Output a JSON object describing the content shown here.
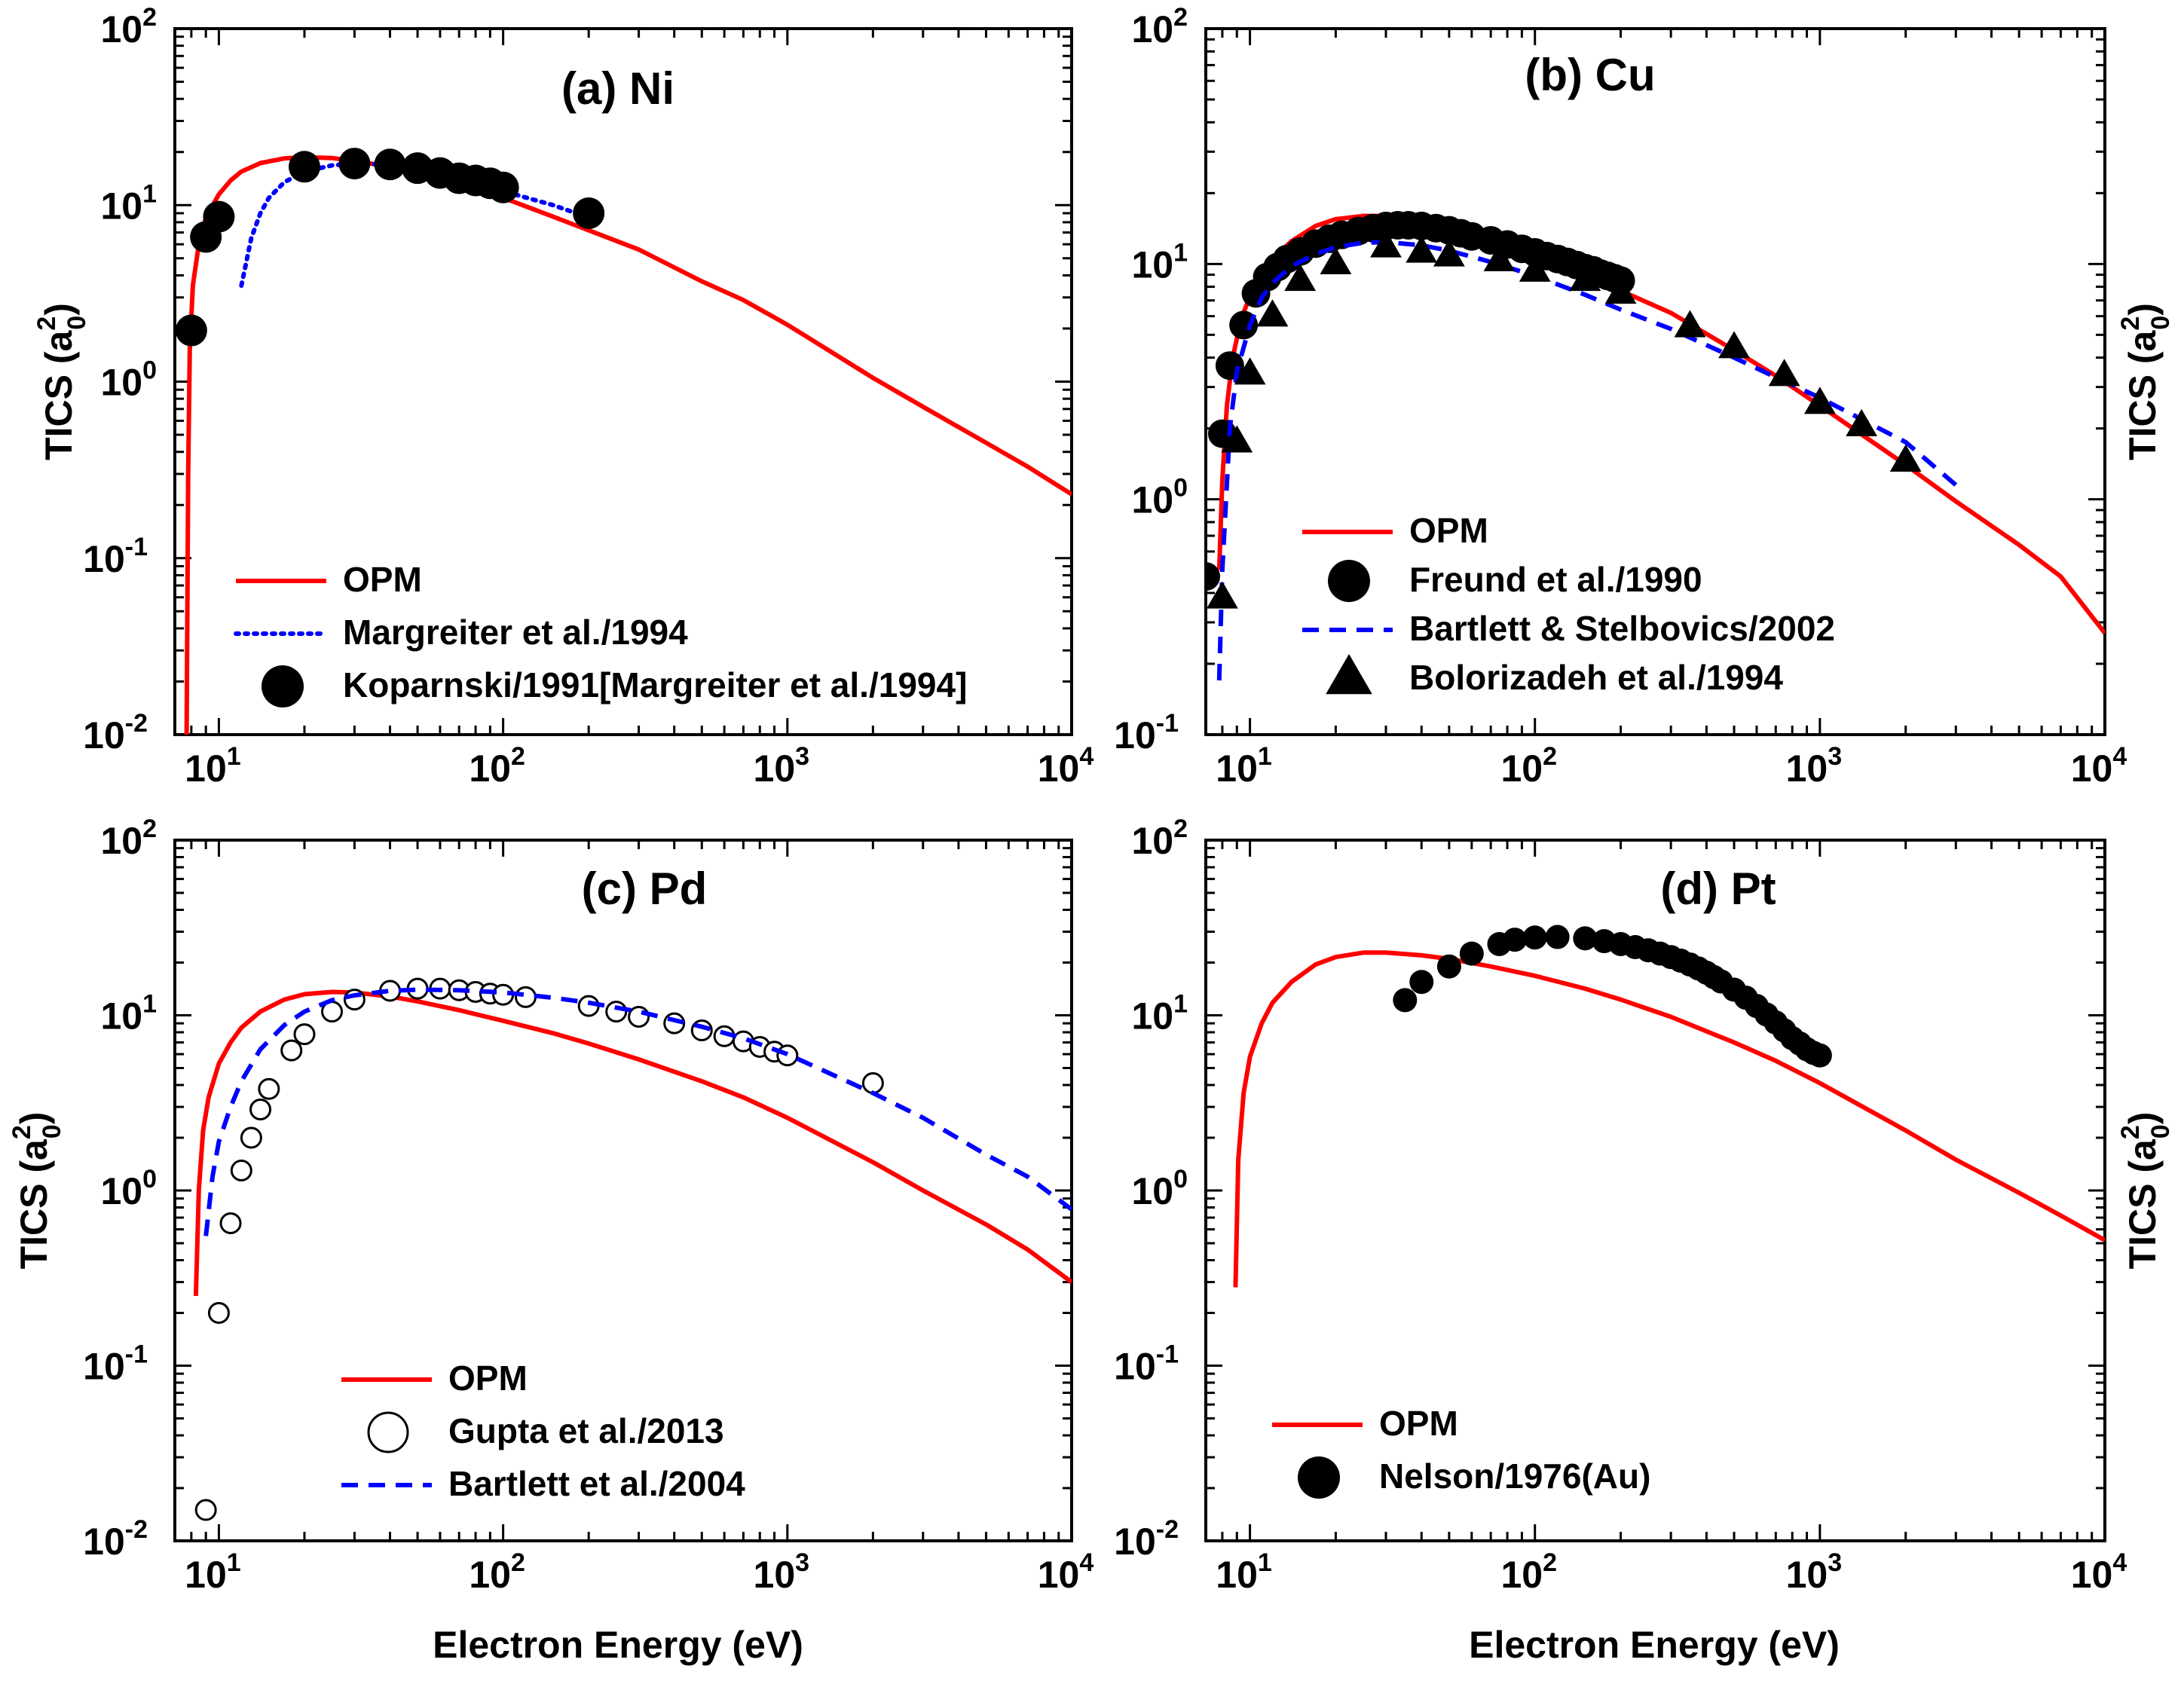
{
  "figure": {
    "xlabel": "Electron Energy (eV)",
    "ylabel": "TICS (a",
    "ylabel_sup": "2",
    "ylabel_sub": "0",
    "ylabel_close": ")"
  },
  "chart_data": [
    {
      "id": "a",
      "type": "line",
      "title": "(a) Ni",
      "xscale": "log",
      "yscale": "log",
      "xlim": [
        7,
        10000
      ],
      "ylim": [
        0.01,
        100
      ],
      "x_ticks": [
        10,
        100,
        1000,
        10000
      ],
      "y_ticks": [
        0.01,
        0.1,
        1,
        10,
        100
      ],
      "tick_base": "10",
      "x_tick_exps": [
        "1",
        "2",
        "3",
        "4"
      ],
      "y_tick_exps": [
        "-2",
        "-1",
        "0",
        "1",
        "2"
      ],
      "show_ylabel": "left",
      "show_xlabel": false,
      "legend_position": "bottom-left",
      "series": [
        {
          "name": "OPM",
          "kind": "line",
          "color": "#ff0000",
          "dash": "solid",
          "x": [
            7.7,
            7.8,
            7.9,
            8.1,
            8.5,
            9,
            10,
            11,
            12,
            14,
            17,
            20,
            25,
            30,
            40,
            50,
            70,
            100,
            150,
            200,
            300,
            500,
            700,
            1000,
            2000,
            3000,
            5000,
            7000,
            10000
          ],
          "y": [
            0.01,
            0.3,
            1.5,
            3.5,
            6.0,
            8.5,
            11.5,
            13.8,
            15.5,
            17.3,
            18.4,
            18.7,
            18.5,
            17.8,
            16.5,
            15.5,
            13.3,
            11.0,
            8.6,
            7.2,
            5.6,
            3.7,
            2.9,
            2.1,
            1.05,
            0.72,
            0.45,
            0.33,
            0.23
          ]
        },
        {
          "name": "Margreiter et al./1994",
          "kind": "line",
          "color": "#0000ff",
          "dash": "dotted",
          "x": [
            12,
            13,
            14,
            15,
            17,
            20,
            25,
            30,
            40,
            50,
            70,
            100,
            150,
            200
          ],
          "y": [
            3.5,
            6.5,
            9.0,
            11.0,
            13.5,
            15.5,
            16.8,
            17.2,
            17.0,
            16.0,
            14.0,
            12.0,
            10.0,
            8.5
          ]
        },
        {
          "name": "Koparnski/1991[Margreiter et al./1994]",
          "kind": "scatter",
          "marker": "circle-filled",
          "color": "#000000",
          "x": [
            8,
            9,
            10,
            20,
            30,
            40,
            50,
            60,
            70,
            80,
            90,
            100,
            200
          ],
          "y": [
            1.95,
            6.6,
            8.6,
            16.5,
            17.2,
            17.0,
            16.2,
            15.2,
            14.2,
            13.8,
            13.3,
            12.6,
            9.0
          ]
        }
      ]
    },
    {
      "id": "b",
      "type": "line",
      "title": "(b) Cu",
      "xscale": "log",
      "yscale": "log",
      "xlim": [
        7,
        10000
      ],
      "ylim": [
        0.1,
        100
      ],
      "x_ticks": [
        10,
        100,
        1000,
        10000
      ],
      "y_ticks": [
        0.1,
        1,
        10,
        100
      ],
      "tick_base": "10",
      "x_tick_exps": [
        "1",
        "2",
        "3",
        "4"
      ],
      "y_tick_exps": [
        "-1",
        "0",
        "1",
        "2"
      ],
      "show_ylabel": "right",
      "show_xlabel": false,
      "legend_position": "bottom-left",
      "series": [
        {
          "name": "OPM",
          "kind": "line",
          "color": "#ff0000",
          "dash": "solid",
          "x": [
            7.8,
            8,
            8.3,
            8.7,
            9.3,
            10,
            11,
            12,
            14,
            17,
            20,
            25,
            30,
            40,
            50,
            70,
            100,
            150,
            200,
            300,
            500,
            700,
            1000,
            2000,
            3000,
            5000,
            7000,
            10000
          ],
          "y": [
            0.5,
            1.2,
            2.5,
            4.0,
            5.8,
            7.3,
            9.0,
            10.5,
            12.5,
            14.5,
            15.5,
            16.0,
            16.0,
            15.2,
            14.3,
            12.7,
            11.0,
            9.0,
            7.7,
            6.2,
            4.3,
            3.35,
            2.5,
            1.4,
            0.98,
            0.64,
            0.47,
            0.27
          ]
        },
        {
          "name": "Freund et al./1990",
          "kind": "scatter",
          "marker": "circle-filled",
          "color": "#000000",
          "x": [
            7,
            8,
            8.5,
            9.5,
            10.5,
            11.5,
            12.5,
            13.5,
            15,
            17,
            19,
            21,
            24,
            27,
            30,
            33,
            36,
            40,
            45,
            50,
            55,
            60,
            70,
            80,
            90,
            100,
            110,
            120,
            130,
            140,
            150,
            160,
            170,
            180,
            190,
            200
          ],
          "y": [
            0.47,
            1.9,
            3.7,
            5.5,
            7.5,
            8.8,
            9.7,
            10.5,
            11.3,
            12.2,
            12.8,
            13.3,
            13.8,
            14.2,
            14.5,
            14.6,
            14.6,
            14.5,
            14.2,
            13.9,
            13.5,
            13.1,
            12.6,
            12.1,
            11.6,
            11.2,
            10.8,
            10.5,
            10.2,
            9.9,
            9.6,
            9.4,
            9.1,
            8.9,
            8.7,
            8.5
          ]
        },
        {
          "name": "Bartlett & Stelbovics/2002",
          "kind": "line",
          "color": "#0000ff",
          "dash": "dashed",
          "x": [
            7.8,
            8,
            8.5,
            9,
            10,
            11,
            12,
            14,
            17,
            20,
            25,
            30,
            40,
            50,
            70,
            100,
            150,
            200,
            300,
            500,
            700,
            1000,
            2000,
            3000
          ],
          "y": [
            0.17,
            0.5,
            2.0,
            3.5,
            5.5,
            7.2,
            8.3,
            9.8,
            11.0,
            11.8,
            12.3,
            12.4,
            12.0,
            11.4,
            10.2,
            8.9,
            7.4,
            6.4,
            5.3,
            4.0,
            3.3,
            2.7,
            1.75,
            1.15
          ]
        },
        {
          "name": "Bolorizadeh et al./1994",
          "kind": "scatter",
          "marker": "triangle-filled",
          "color": "#000000",
          "x": [
            8,
            9,
            10,
            12,
            15,
            20,
            30,
            40,
            50,
            75,
            100,
            150,
            200,
            350,
            500,
            750,
            1000,
            1400,
            2000
          ],
          "y": [
            0.38,
            1.75,
            3.4,
            6.0,
            8.5,
            10.0,
            11.8,
            11.2,
            10.8,
            10.3,
            9.3,
            8.5,
            7.5,
            5.4,
            4.4,
            3.35,
            2.55,
            2.05,
            1.45
          ]
        }
      ]
    },
    {
      "id": "c",
      "type": "line",
      "title": "(c) Pd",
      "xscale": "log",
      "yscale": "log",
      "xlim": [
        7,
        10000
      ],
      "ylim": [
        0.01,
        100
      ],
      "x_ticks": [
        10,
        100,
        1000,
        10000
      ],
      "y_ticks": [
        0.01,
        0.1,
        1,
        10,
        100
      ],
      "tick_base": "10",
      "x_tick_exps": [
        "1",
        "2",
        "3",
        "4"
      ],
      "y_tick_exps": [
        "-2",
        "-1",
        "0",
        "1",
        "2"
      ],
      "show_ylabel": "left",
      "show_xlabel": true,
      "legend_position": "bottom-left",
      "series": [
        {
          "name": "OPM",
          "kind": "line",
          "color": "#ff0000",
          "dash": "solid",
          "x": [
            8.3,
            8.5,
            8.8,
            9.2,
            10,
            11,
            12,
            14,
            17,
            20,
            25,
            30,
            40,
            50,
            70,
            100,
            150,
            200,
            300,
            500,
            700,
            1000,
            2000,
            3000,
            5000,
            7000,
            10000
          ],
          "y": [
            0.25,
            1.0,
            2.2,
            3.4,
            5.3,
            7.0,
            8.5,
            10.5,
            12.3,
            13.2,
            13.6,
            13.5,
            12.8,
            12.0,
            10.7,
            9.3,
            7.9,
            6.9,
            5.6,
            4.2,
            3.4,
            2.6,
            1.45,
            1.0,
            0.64,
            0.46,
            0.3
          ]
        },
        {
          "name": "Gupta et al./2013",
          "kind": "scatter",
          "marker": "circle-open",
          "color": "#000000",
          "x": [
            9,
            10,
            11,
            12,
            13,
            14,
            15,
            18,
            20,
            25,
            30,
            40,
            50,
            60,
            70,
            80,
            90,
            100,
            120,
            200,
            250,
            300,
            400,
            500,
            600,
            700,
            800,
            900,
            1000,
            2000
          ],
          "y": [
            0.015,
            0.2,
            0.65,
            1.3,
            2.0,
            2.9,
            3.8,
            6.3,
            7.8,
            10.5,
            12.3,
            13.8,
            14.2,
            14.2,
            13.9,
            13.6,
            13.3,
            13.1,
            12.7,
            11.3,
            10.5,
            9.8,
            9.0,
            8.2,
            7.6,
            7.1,
            6.6,
            6.2,
            5.9,
            4.1
          ]
        },
        {
          "name": "Bartlett et al./2004",
          "kind": "line",
          "color": "#0000ff",
          "dash": "dashed",
          "x": [
            9,
            9.5,
            10,
            11,
            12,
            14,
            17,
            20,
            25,
            30,
            40,
            50,
            70,
            100,
            150,
            200,
            300,
            500,
            700,
            1000,
            2000,
            3000,
            5000,
            7000,
            10000
          ],
          "y": [
            0.55,
            1.2,
            1.9,
            3.0,
            4.2,
            6.4,
            8.8,
            10.5,
            12.2,
            13.0,
            13.8,
            14.0,
            13.9,
            13.5,
            12.6,
            11.8,
            10.5,
            8.6,
            7.4,
            6.0,
            3.6,
            2.6,
            1.6,
            1.2,
            0.78
          ]
        }
      ]
    },
    {
      "id": "d",
      "type": "line",
      "title": "(d) Pt",
      "xscale": "log",
      "yscale": "log",
      "xlim": [
        7,
        10000
      ],
      "ylim": [
        0.01,
        100
      ],
      "x_ticks": [
        10,
        100,
        1000,
        10000
      ],
      "y_ticks": [
        0.01,
        0.1,
        1,
        10,
        100
      ],
      "tick_base": "10",
      "x_tick_exps": [
        "1",
        "2",
        "3",
        "4"
      ],
      "y_tick_exps": [
        "-2",
        "-1",
        "0",
        "1",
        "2"
      ],
      "show_ylabel": "right",
      "show_xlabel": true,
      "legend_position": "bottom-left",
      "series": [
        {
          "name": "OPM",
          "kind": "line",
          "color": "#ff0000",
          "dash": "solid",
          "x": [
            8.9,
            9.1,
            9.5,
            10,
            11,
            12,
            14,
            17,
            20,
            25,
            30,
            40,
            50,
            70,
            100,
            150,
            200,
            300,
            500,
            700,
            1000,
            2000,
            3000,
            5000,
            7000,
            10000
          ],
          "y": [
            0.28,
            1.5,
            3.6,
            5.8,
            9.0,
            11.8,
            15.5,
            19.5,
            21.5,
            22.8,
            22.8,
            22.0,
            21.0,
            19.0,
            16.8,
            14.2,
            12.3,
            9.8,
            7.0,
            5.5,
            4.1,
            2.2,
            1.5,
            0.97,
            0.72,
            0.52
          ]
        },
        {
          "name": "Nelson/1976(Au)",
          "kind": "scatter",
          "marker": "circle-filled",
          "color": "#000000",
          "x": [
            35,
            40,
            50,
            60,
            75,
            85,
            100,
            120,
            150,
            175,
            200,
            225,
            250,
            275,
            300,
            325,
            350,
            375,
            400,
            425,
            450,
            500,
            550,
            600,
            650,
            700,
            750,
            800,
            850,
            900,
            950,
            1000
          ],
          "y": [
            12.2,
            15.5,
            19.0,
            22.5,
            25.5,
            27.0,
            27.8,
            28.0,
            27.5,
            26.5,
            25.5,
            24.5,
            23.5,
            22.5,
            21.5,
            20.5,
            19.5,
            18.5,
            17.5,
            16.5,
            15.6,
            14.0,
            12.6,
            11.3,
            10.1,
            9.1,
            8.2,
            7.4,
            6.9,
            6.4,
            6.1,
            5.9
          ]
        }
      ]
    }
  ]
}
